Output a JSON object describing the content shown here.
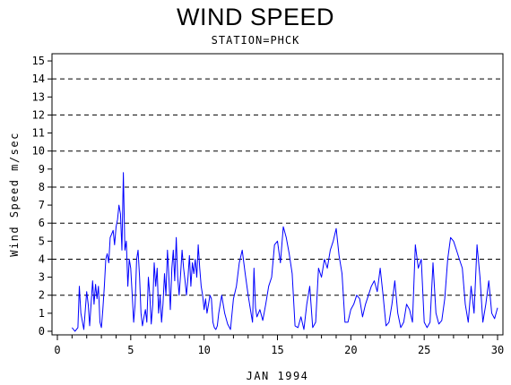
{
  "chart_data": {
    "type": "line",
    "title": "WIND SPEED",
    "subtitle": "STATION=PHCK",
    "xlabel": "JAN 1994",
    "ylabel": "Wind Speed m/sec",
    "xlim": [
      0,
      30
    ],
    "ylim": [
      0,
      15
    ],
    "x_ticks": [
      0,
      5,
      10,
      15,
      20,
      25,
      30
    ],
    "y_ticks": [
      0,
      1,
      2,
      3,
      4,
      5,
      6,
      7,
      8,
      9,
      10,
      11,
      12,
      13,
      14,
      15
    ],
    "reference_lines": [
      2,
      4,
      6,
      8,
      10,
      12,
      14
    ],
    "line_color": "#0000ff",
    "series": [
      {
        "name": "",
        "x": [
          1.0,
          1.2,
          1.4,
          1.5,
          1.6,
          1.8,
          2.0,
          2.1,
          2.2,
          2.4,
          2.5,
          2.6,
          2.7,
          2.8,
          2.9,
          3.0,
          3.1,
          3.2,
          3.3,
          3.4,
          3.5,
          3.6,
          3.7,
          3.8,
          3.9,
          4.0,
          4.1,
          4.2,
          4.3,
          4.4,
          4.5,
          4.6,
          4.7,
          4.8,
          4.9,
          5.0,
          5.1,
          5.2,
          5.3,
          5.4,
          5.5,
          5.6,
          5.7,
          5.8,
          5.9,
          6.0,
          6.1,
          6.2,
          6.3,
          6.4,
          6.5,
          6.6,
          6.7,
          6.8,
          6.9,
          7.0,
          7.1,
          7.2,
          7.3,
          7.4,
          7.5,
          7.6,
          7.7,
          7.8,
          7.9,
          8.0,
          8.1,
          8.2,
          8.3,
          8.4,
          8.5,
          8.6,
          8.7,
          8.8,
          8.9,
          9.0,
          9.1,
          9.2,
          9.3,
          9.4,
          9.5,
          9.6,
          9.7,
          9.8,
          9.9,
          10.0,
          10.1,
          10.2,
          10.3,
          10.4,
          10.5,
          10.6,
          10.7,
          10.8,
          10.9,
          11.0,
          11.2,
          11.4,
          11.6,
          11.8,
          12.0,
          12.2,
          12.4,
          12.6,
          12.8,
          13.0,
          13.2,
          13.3,
          13.4,
          13.5,
          13.6,
          13.8,
          14.0,
          14.2,
          14.4,
          14.6,
          14.8,
          15.0,
          15.2,
          15.4,
          15.6,
          15.8,
          16.0,
          16.2,
          16.4,
          16.6,
          16.8,
          17.0,
          17.2,
          17.4,
          17.6,
          17.8,
          18.0,
          18.2,
          18.4,
          18.6,
          18.8,
          19.0,
          19.2,
          19.4,
          19.6,
          19.8,
          20.0,
          20.2,
          20.4,
          20.6,
          20.8,
          21.0,
          21.2,
          21.4,
          21.6,
          21.8,
          22.0,
          22.2,
          22.4,
          22.6,
          22.8,
          23.0,
          23.2,
          23.4,
          23.6,
          23.8,
          24.0,
          24.2,
          24.4,
          24.6,
          24.8,
          25.0,
          25.2,
          25.4,
          25.6,
          25.8,
          26.0,
          26.2,
          26.4,
          26.6,
          26.8,
          27.0,
          27.2,
          27.4,
          27.6,
          27.8,
          28.0,
          28.2,
          28.4,
          28.6,
          28.8,
          29.0,
          29.2,
          29.4,
          29.6,
          29.8,
          30.0
        ],
        "y": [
          0.2,
          0.0,
          0.2,
          2.5,
          1.0,
          0.1,
          2.2,
          1.5,
          0.3,
          2.8,
          1.5,
          2.6,
          1.8,
          2.5,
          0.5,
          0.2,
          1.2,
          2.5,
          4.0,
          4.3,
          3.8,
          5.2,
          5.4,
          5.6,
          4.8,
          5.8,
          6.2,
          7.0,
          6.5,
          4.5,
          8.8,
          4.5,
          5.0,
          2.5,
          4.0,
          3.5,
          2.0,
          0.5,
          1.5,
          4.0,
          4.5,
          3.0,
          1.0,
          0.3,
          0.8,
          1.2,
          0.5,
          3.0,
          2.0,
          0.4,
          1.5,
          3.8,
          2.5,
          3.5,
          1.0,
          2.0,
          0.5,
          1.5,
          3.2,
          2.0,
          4.5,
          3.0,
          1.2,
          3.5,
          4.5,
          2.8,
          5.2,
          3.0,
          2.0,
          3.2,
          4.5,
          3.5,
          2.8,
          2.0,
          3.0,
          4.2,
          2.5,
          3.8,
          3.2,
          4.0,
          3.0,
          4.8,
          3.5,
          2.5,
          2.0,
          1.2,
          1.8,
          1.0,
          1.5,
          2.0,
          1.8,
          0.5,
          0.2,
          0.1,
          0.3,
          1.0,
          2.0,
          1.0,
          0.4,
          0.1,
          1.8,
          2.5,
          3.8,
          4.5,
          3.2,
          2.0,
          1.0,
          0.5,
          3.5,
          1.3,
          0.8,
          1.2,
          0.6,
          1.5,
          2.5,
          3.0,
          4.8,
          5.0,
          3.8,
          5.8,
          5.2,
          4.3,
          3.2,
          0.3,
          0.2,
          0.8,
          0.1,
          1.5,
          2.5,
          0.2,
          0.5,
          3.5,
          3.0,
          4.0,
          3.5,
          4.5,
          5.0,
          5.7,
          4.2,
          3.2,
          0.5,
          0.5,
          1.2,
          1.5,
          2.0,
          1.8,
          0.8,
          1.5,
          2.0,
          2.5,
          2.8,
          2.2,
          3.5,
          2.0,
          0.3,
          0.5,
          1.5,
          2.8,
          1.0,
          0.2,
          0.5,
          1.5,
          1.2,
          0.5,
          4.8,
          3.5,
          4.0,
          0.5,
          0.2,
          0.5,
          3.8,
          1.0,
          0.4,
          0.6,
          1.8,
          4.0,
          5.2,
          5.0,
          4.5,
          4.0,
          3.5,
          1.5,
          0.5,
          2.5,
          1.0,
          4.8,
          3.0,
          0.5,
          1.5,
          2.8,
          1.0,
          0.7,
          1.3
        ]
      }
    ]
  }
}
